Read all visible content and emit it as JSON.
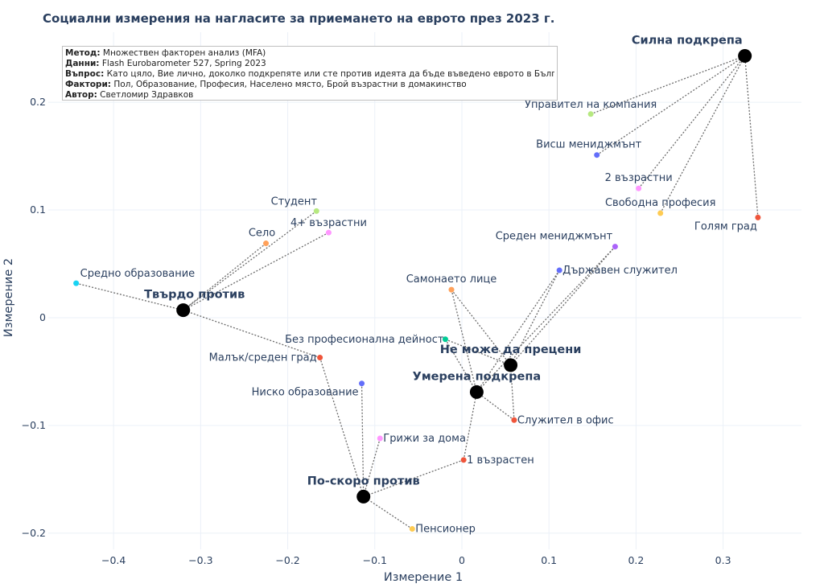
{
  "chart_data": {
    "type": "scatter",
    "title": "Социални измерения на нагласите за приемането на еврото през 2023 г.",
    "xlabel": "Измерение 1",
    "ylabel": "Измерение 2",
    "xlim": [
      -0.475,
      0.39
    ],
    "ylim": [
      -0.215,
      0.265
    ],
    "xticks": [
      -0.4,
      -0.3,
      -0.2,
      -0.1,
      0,
      0.1,
      0.2,
      0.3
    ],
    "xtick_labels": [
      "−0.4",
      "−0.3",
      "−0.2",
      "−0.1",
      "0",
      "0.1",
      "0.2",
      "0.3"
    ],
    "yticks": [
      -0.2,
      -0.1,
      0,
      0.1,
      0.2
    ],
    "ytick_labels": [
      "−0.2",
      "−0.1",
      "0",
      "0.1",
      "0.2"
    ],
    "grid": true,
    "info_box": [
      {
        "key": "Метод:",
        "value": "Множествен факторен анализ (MFA)"
      },
      {
        "key": "Данни:",
        "value": "Flash Eurobarometer 527, Spring 2023"
      },
      {
        "key": "Въпрос:",
        "value": "Като цяло, Вие лично, доколко подкрепяте или сте против идеята да бъде въведено еврото в България?"
      },
      {
        "key": "Фактори:",
        "value": "Пол, Образование, Професия, Населено място, Брой възрастни в домакинство"
      },
      {
        "key": "Автор:",
        "value": "Светломир Здравков"
      }
    ],
    "centroids": [
      {
        "name": "Силна подкрепа",
        "x": 0.325,
        "y": 0.243,
        "anchor": "end",
        "dx": -3,
        "dy": -15
      },
      {
        "name": "Твърдо против",
        "x": -0.32,
        "y": 0.007,
        "anchor": "middle",
        "dx": 14,
        "dy": -15
      },
      {
        "name": "Не може да прецени",
        "x": 0.056,
        "y": -0.044,
        "anchor": "middle",
        "dx": 0,
        "dy": -15
      },
      {
        "name": "Умерена подкрепа",
        "x": 0.017,
        "y": -0.069,
        "anchor": "middle",
        "dx": 0,
        "dy": -15
      },
      {
        "name": "По-скоро против",
        "x": -0.113,
        "y": -0.166,
        "anchor": "middle",
        "dx": 0,
        "dy": -15
      }
    ],
    "categories": [
      {
        "name": "Управител на компания",
        "x": 0.148,
        "y": 0.189,
        "color": "#b6e880",
        "anchor": "middle",
        "dx": 0,
        "dy": -8,
        "links": [
          "Силна подкрепа"
        ]
      },
      {
        "name": "Висш мениджмънт",
        "x": 0.155,
        "y": 0.151,
        "color": "#636efa",
        "anchor": "middle",
        "dx": -10,
        "dy": -9,
        "links": [
          "Силна подкрепа"
        ]
      },
      {
        "name": "2 възрастни",
        "x": 0.203,
        "y": 0.12,
        "color": "#ff97ff",
        "anchor": "middle",
        "dx": 0,
        "dy": -9,
        "links": [
          "Силна подкрепа"
        ]
      },
      {
        "name": "Свободна професия",
        "x": 0.228,
        "y": 0.097,
        "color": "#fecb52",
        "anchor": "middle",
        "dx": 0,
        "dy": -9,
        "links": [
          "Силна подкрепа"
        ]
      },
      {
        "name": "Голям град",
        "x": 0.34,
        "y": 0.093,
        "color": "#ef553b",
        "anchor": "middle",
        "dx": -40,
        "dy": 15,
        "links": [
          "Силна подкрепа"
        ]
      },
      {
        "name": "Среден мениджмънт",
        "x": 0.176,
        "y": 0.066,
        "color": "#ab63fa",
        "anchor": "middle",
        "dx": -76,
        "dy": -9,
        "links": [
          "Не може да прецени",
          "Умерена подкрепа"
        ]
      },
      {
        "name": "Държавен служител",
        "x": 0.112,
        "y": 0.044,
        "color": "#636efa",
        "anchor": "start",
        "dx": 4,
        "dy": 4,
        "links": [
          "Не може да прецени",
          "Умерена подкрепа"
        ]
      },
      {
        "name": "Студент",
        "x": -0.167,
        "y": 0.099,
        "color": "#b6e880",
        "anchor": "middle",
        "dx": -28,
        "dy": -8,
        "links": [
          "Твърдо против"
        ]
      },
      {
        "name": "4+ възрастни",
        "x": -0.153,
        "y": 0.079,
        "color": "#ff97ff",
        "anchor": "middle",
        "dx": 0,
        "dy": -8,
        "links": [
          "Твърдо против"
        ]
      },
      {
        "name": "Село",
        "x": -0.225,
        "y": 0.069,
        "color": "#ffa15a",
        "anchor": "middle",
        "dx": -5,
        "dy": -9,
        "links": [
          "Твърдо против"
        ]
      },
      {
        "name": "Средно образование",
        "x": -0.443,
        "y": 0.032,
        "color": "#19d3f3",
        "anchor": "start",
        "dx": 5,
        "dy": -8,
        "links": [
          "Твърдо против"
        ]
      },
      {
        "name": "Самонаето лице",
        "x": -0.012,
        "y": 0.026,
        "color": "#ffa15a",
        "anchor": "middle",
        "dx": 0,
        "dy": -9,
        "links": [
          "Не може да прецени",
          "Умерена подкрепа"
        ]
      },
      {
        "name": "Без професионална дейност",
        "x": -0.019,
        "y": -0.02,
        "color": "#00cc96",
        "anchor": "end",
        "dx": -2,
        "dy": 4,
        "links": [
          "Не може да прецени",
          "Умерена подкрепа"
        ]
      },
      {
        "name": "Малък/среден град",
        "x": -0.163,
        "y": -0.037,
        "color": "#ef553b",
        "anchor": "end",
        "dx": -4,
        "dy": 4,
        "links": [
          "Твърдо против",
          "По-скоро против"
        ]
      },
      {
        "name": "Ниско образование",
        "x": -0.115,
        "y": -0.061,
        "color": "#636efa",
        "anchor": "end",
        "dx": -4,
        "dy": 15,
        "links": [
          "По-скоро против"
        ]
      },
      {
        "name": "Служител в офис",
        "x": 0.06,
        "y": -0.095,
        "color": "#ef553b",
        "anchor": "start",
        "dx": 4,
        "dy": 4,
        "links": [
          "Не може да прецени",
          "Умерена подкрепа"
        ]
      },
      {
        "name": "Грижи за дома",
        "x": -0.094,
        "y": -0.112,
        "color": "#ff97ff",
        "anchor": "start",
        "dx": 4,
        "dy": 4,
        "links": [
          "По-скоро против"
        ]
      },
      {
        "name": "1 възрастен",
        "x": 0.002,
        "y": -0.132,
        "color": "#ef553b",
        "anchor": "start",
        "dx": 4,
        "dy": 4,
        "links": [
          "Умерена подкрепа",
          "По-скоро против"
        ]
      },
      {
        "name": "Пенсионер",
        "x": -0.057,
        "y": -0.196,
        "color": "#fecb52",
        "anchor": "start",
        "dx": 4,
        "dy": 4,
        "links": [
          "По-скоро против"
        ]
      }
    ]
  }
}
